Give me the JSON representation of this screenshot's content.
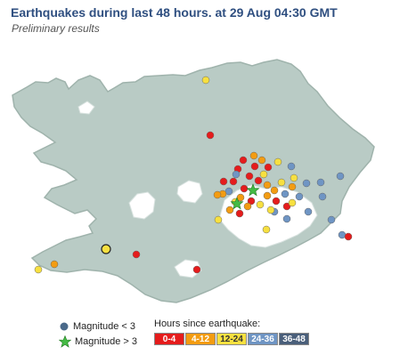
{
  "header": {
    "title": "Earthquakes during last 48 hours.  at 29 Aug 04:30 GMT",
    "subtitle": "Preliminary results"
  },
  "map": {
    "land_color": "#b9cbc5",
    "outline_color": "#9fb3ac",
    "glacier_color": "#ffffff"
  },
  "legend": {
    "magnitude": [
      {
        "label": "Magnitude < 3",
        "icon": "circle-icon",
        "color": "#4a6a8a"
      },
      {
        "label": "Magnitude > 3",
        "icon": "star-icon",
        "color": "#44bb44"
      }
    ],
    "hours_title": "Hours since earthquake:",
    "bins": [
      {
        "label": "0-4",
        "color": "#e51c1c"
      },
      {
        "label": "4-12",
        "color": "#f39c12"
      },
      {
        "label": "12-24",
        "color": "#f7e040"
      },
      {
        "label": "24-36",
        "color": "#6f95c4"
      },
      {
        "label": "36-48",
        "color": "#4a5f7a"
      }
    ]
  }
}
